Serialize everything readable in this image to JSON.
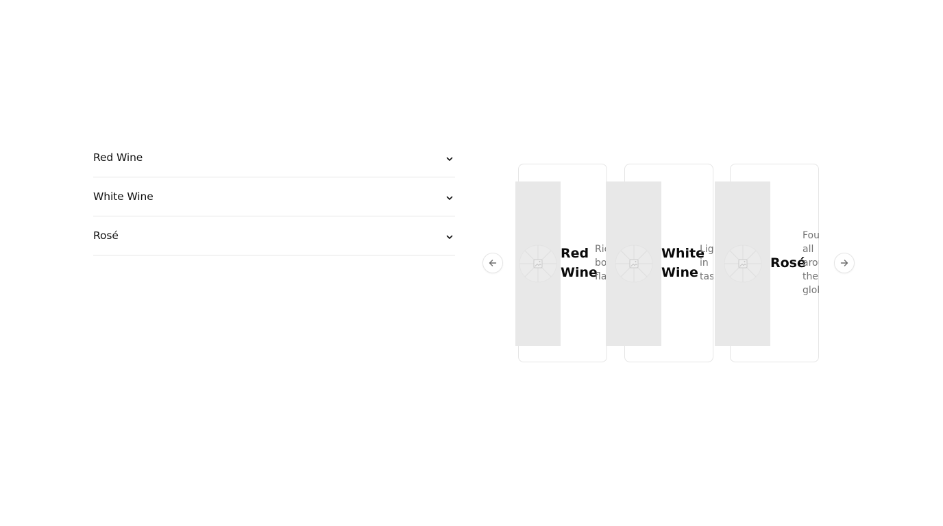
{
  "accordion": {
    "items": [
      {
        "label": "Red Wine",
        "icon": "chevron-down-icon"
      },
      {
        "label": "White Wine",
        "icon": "chevron-down-icon"
      },
      {
        "label": "Rosé",
        "icon": "chevron-down-icon"
      }
    ]
  },
  "carousel": {
    "prev_icon": "arrow-left-icon",
    "next_icon": "arrow-right-icon",
    "cards": [
      {
        "title": "Red\nWine",
        "description": "Ric\nbo\nfla",
        "image_icon": "image-placeholder-icon"
      },
      {
        "title": "White\nWine",
        "description": "Ligh\nin\ntast",
        "image_icon": "image-placeholder-icon"
      },
      {
        "title": "Rosé",
        "description": "Foun\nall\narou\nthe\nglob",
        "image_icon": "image-placeholder-icon"
      }
    ]
  },
  "colors": {
    "border": "#e5e5e5",
    "image_bg": "#e8e8e8",
    "muted_text": "#737373",
    "text": "#0a0a0a"
  }
}
